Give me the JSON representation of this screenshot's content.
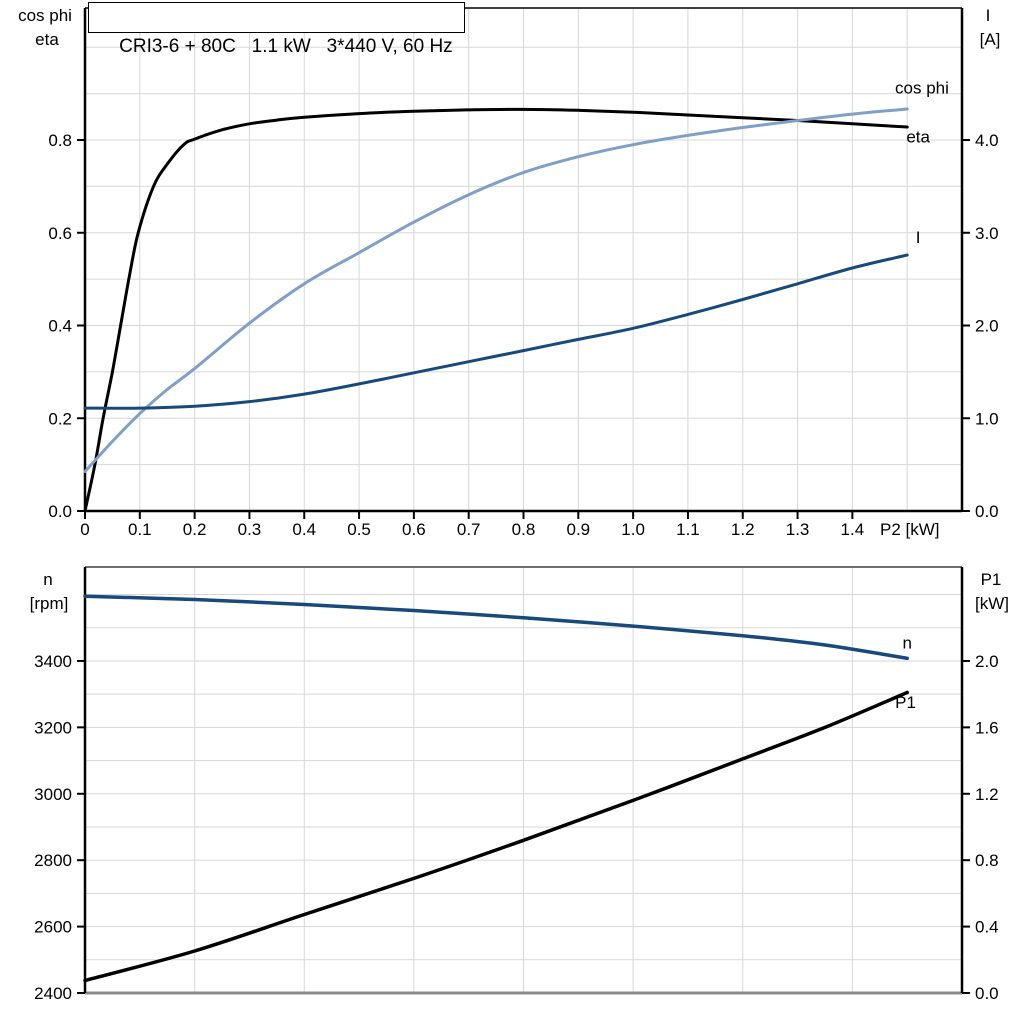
{
  "title": "CRI3-6 + 80C   1.1 kW   3*440 V, 60 Hz",
  "colors": {
    "background": "#ffffff",
    "grid": "#d7d7d7",
    "frame": "#000000",
    "frame_gray": "#8c8c8c",
    "frame_gray_dark": "#6e6e6e",
    "black": "#000000",
    "light_blue": "#7f9fc6",
    "dark_blue": "#17497c"
  },
  "chart_data": [
    {
      "type": "line",
      "panel": "top",
      "title": "CRI3-6 + 80C   1.1 kW   3*440 V, 60 Hz",
      "xlabel": "P2 [kW]",
      "x_range": [
        0,
        1.6
      ],
      "x_grid_step": 0.1,
      "x_ticks": [
        {
          "v": 0,
          "label": "0"
        },
        {
          "v": 0.1,
          "label": "0.1"
        },
        {
          "v": 0.2,
          "label": "0.2"
        },
        {
          "v": 0.3,
          "label": "0.3"
        },
        {
          "v": 0.4,
          "label": "0.4"
        },
        {
          "v": 0.5,
          "label": "0.5"
        },
        {
          "v": 0.6,
          "label": "0.6"
        },
        {
          "v": 0.7,
          "label": "0.7"
        },
        {
          "v": 0.8,
          "label": "0.8"
        },
        {
          "v": 0.9,
          "label": "0.9"
        },
        {
          "v": 1.0,
          "label": "1.0"
        },
        {
          "v": 1.1,
          "label": "1.1"
        },
        {
          "v": 1.2,
          "label": "1.2"
        },
        {
          "v": 1.3,
          "label": "1.3"
        },
        {
          "v": 1.4,
          "label": "1.4"
        }
      ],
      "left_axis": {
        "title_lines": [
          "cos phi",
          "eta"
        ],
        "range": [
          0,
          1.0847
        ],
        "grid_step": 0.1,
        "ticks": [
          {
            "v": 0.0,
            "label": "0.0"
          },
          {
            "v": 0.2,
            "label": "0.2"
          },
          {
            "v": 0.4,
            "label": "0.4"
          },
          {
            "v": 0.6,
            "label": "0.6"
          },
          {
            "v": 0.8,
            "label": "0.8"
          }
        ]
      },
      "right_axis": {
        "title_lines": [
          "I",
          "[A]"
        ],
        "range": [
          0,
          5.4236
        ],
        "grid_step": 0.5,
        "ticks": [
          {
            "v": 0.0,
            "label": "0.0"
          },
          {
            "v": 1.0,
            "label": "1.0"
          },
          {
            "v": 2.0,
            "label": "2.0"
          },
          {
            "v": 3.0,
            "label": "3.0"
          },
          {
            "v": 4.0,
            "label": "4.0"
          }
        ]
      },
      "series": [
        {
          "name": "eta",
          "label": "eta",
          "axis": "left",
          "color_key": "black",
          "label_color_key": "black",
          "width": 3,
          "label_at": {
            "x": 1.52,
            "y": 0.795
          },
          "points": [
            [
              0,
              0
            ],
            [
              0.018,
              0.1
            ],
            [
              0.033,
              0.2
            ],
            [
              0.05,
              0.3
            ],
            [
              0.065,
              0.4
            ],
            [
              0.08,
              0.5
            ],
            [
              0.097,
              0.6
            ],
            [
              0.125,
              0.7
            ],
            [
              0.15,
              0.748
            ],
            [
              0.18,
              0.79
            ],
            [
              0.2,
              0.802
            ],
            [
              0.25,
              0.822
            ],
            [
              0.3,
              0.835
            ],
            [
              0.35,
              0.843
            ],
            [
              0.4,
              0.849
            ],
            [
              0.5,
              0.857
            ],
            [
              0.6,
              0.862
            ],
            [
              0.7,
              0.865
            ],
            [
              0.8,
              0.866
            ],
            [
              0.9,
              0.864
            ],
            [
              1.0,
              0.86
            ],
            [
              1.1,
              0.854
            ],
            [
              1.2,
              0.848
            ],
            [
              1.3,
              0.842
            ],
            [
              1.4,
              0.835
            ],
            [
              1.5,
              0.828
            ]
          ]
        },
        {
          "name": "cos_phi",
          "label": "cos phi",
          "axis": "left",
          "color_key": "light_blue",
          "label_color_key": "light_blue",
          "width": 3,
          "label_at": {
            "x": 1.527,
            "y": 0.9
          },
          "points": [
            [
              0,
              0.085
            ],
            [
              0.05,
              0.15
            ],
            [
              0.1,
              0.21
            ],
            [
              0.15,
              0.262
            ],
            [
              0.2,
              0.307
            ],
            [
              0.3,
              0.405
            ],
            [
              0.4,
              0.49
            ],
            [
              0.5,
              0.557
            ],
            [
              0.6,
              0.623
            ],
            [
              0.7,
              0.682
            ],
            [
              0.8,
              0.73
            ],
            [
              0.9,
              0.764
            ],
            [
              1.0,
              0.79
            ],
            [
              1.1,
              0.81
            ],
            [
              1.2,
              0.827
            ],
            [
              1.3,
              0.842
            ],
            [
              1.4,
              0.856
            ],
            [
              1.5,
              0.867
            ]
          ]
        },
        {
          "name": "I",
          "label": "I",
          "axis": "right",
          "color_key": "dark_blue",
          "label_color_key": "dark_blue",
          "width": 3,
          "label_at": {
            "x": 1.52,
            "y": 2.89
          },
          "points": [
            [
              0,
              1.11
            ],
            [
              0.1,
              1.11
            ],
            [
              0.2,
              1.13
            ],
            [
              0.3,
              1.18
            ],
            [
              0.4,
              1.26
            ],
            [
              0.5,
              1.37
            ],
            [
              0.6,
              1.49
            ],
            [
              0.7,
              1.61
            ],
            [
              0.8,
              1.73
            ],
            [
              0.9,
              1.85
            ],
            [
              1.0,
              1.97
            ],
            [
              1.1,
              2.12
            ],
            [
              1.2,
              2.28
            ],
            [
              1.3,
              2.45
            ],
            [
              1.4,
              2.62
            ],
            [
              1.5,
              2.76
            ]
          ]
        }
      ]
    },
    {
      "type": "line",
      "panel": "bottom",
      "title": "",
      "xlabel": "",
      "x_range": [
        0,
        1.6
      ],
      "x_grid_step": 0.2,
      "x_ticks": [],
      "left_axis": {
        "title_lines": [
          "n",
          "[rpm]"
        ],
        "range": [
          2400,
          3683
        ],
        "grid_step": 100,
        "ticks": [
          {
            "v": 2400,
            "label": "2400"
          },
          {
            "v": 2600,
            "label": "2600"
          },
          {
            "v": 2800,
            "label": "2800"
          },
          {
            "v": 3000,
            "label": "3000"
          },
          {
            "v": 3200,
            "label": "3200"
          },
          {
            "v": 3400,
            "label": "3400"
          }
        ]
      },
      "right_axis": {
        "title_lines": [
          "P1",
          "[kW]"
        ],
        "range": [
          0,
          2.566
        ],
        "grid_step": 0.2,
        "ticks": [
          {
            "v": 0.0,
            "label": "0.0"
          },
          {
            "v": 0.4,
            "label": "0.4"
          },
          {
            "v": 0.8,
            "label": "0.8"
          },
          {
            "v": 1.2,
            "label": "1.2"
          },
          {
            "v": 1.6,
            "label": "1.6"
          },
          {
            "v": 2.0,
            "label": "2.0"
          }
        ]
      },
      "series": [
        {
          "name": "n",
          "label": "n",
          "axis": "left",
          "color_key": "dark_blue",
          "label_color_key": "dark_blue",
          "width": 3.5,
          "label_at": {
            "x": 1.5,
            "y": 3437
          },
          "points": [
            [
              0,
              3595
            ],
            [
              0.2,
              3585
            ],
            [
              0.4,
              3570
            ],
            [
              0.6,
              3552
            ],
            [
              0.8,
              3530
            ],
            [
              1.0,
              3505
            ],
            [
              1.2,
              3476
            ],
            [
              1.35,
              3448
            ],
            [
              1.5,
              3408
            ]
          ]
        },
        {
          "name": "P1",
          "label": "P1",
          "axis": "right",
          "color_key": "black",
          "label_color_key": "black",
          "width": 3.5,
          "label_at": {
            "x": 1.497,
            "y": 1.717
          },
          "points": [
            [
              0,
              0.075
            ],
            [
              0.2,
              0.253
            ],
            [
              0.4,
              0.473
            ],
            [
              0.6,
              0.69
            ],
            [
              0.8,
              0.92
            ],
            [
              1.0,
              1.16
            ],
            [
              1.2,
              1.41
            ],
            [
              1.35,
              1.6
            ],
            [
              1.5,
              1.81
            ]
          ]
        }
      ]
    }
  ]
}
